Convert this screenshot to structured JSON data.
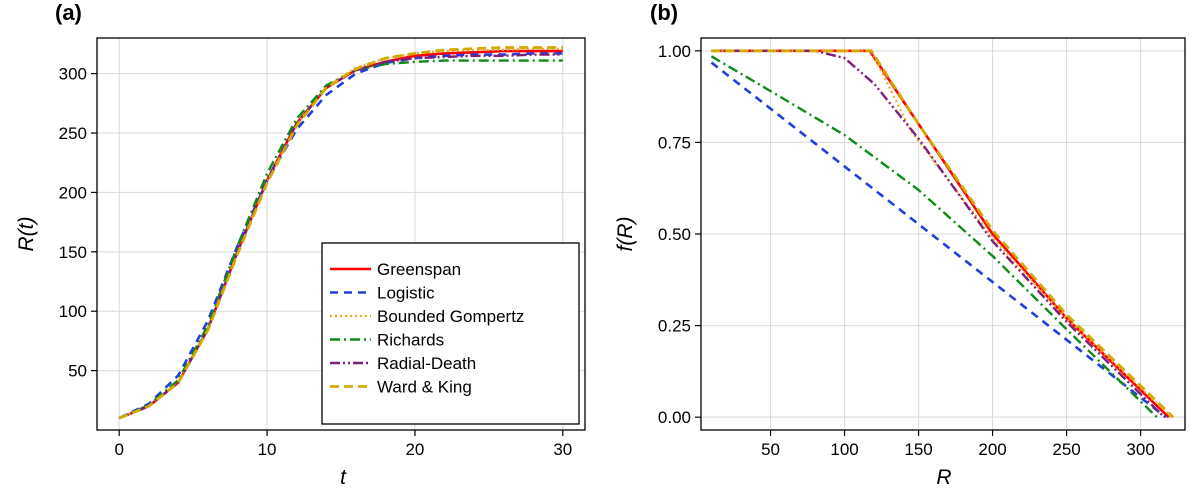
{
  "chart_data": [
    {
      "panel_label": "(a)",
      "type": "line",
      "xlabel": "t",
      "ylabel": "R(t)",
      "xlim": [
        -1.5,
        31.5
      ],
      "ylim": [
        0,
        330
      ],
      "xticks": [
        0,
        10,
        20,
        30
      ],
      "yticks": [
        50,
        100,
        150,
        200,
        250,
        300
      ],
      "grid": true,
      "legend_position": "bottom-right",
      "x": [
        0,
        2,
        4,
        6,
        8,
        10,
        12,
        14,
        16,
        18,
        20,
        22,
        24,
        26,
        28,
        30
      ],
      "series": [
        {
          "name": "Greenspan",
          "color": "#ff0000",
          "dash": "solid",
          "width": 2.6,
          "values": [
            10,
            20,
            40,
            85,
            150,
            210,
            258,
            288,
            303,
            310,
            315,
            317,
            318,
            319,
            319,
            319
          ]
        },
        {
          "name": "Logistic",
          "color": "#1f3fe0",
          "dash": "8,6",
          "width": 2.6,
          "values": [
            10,
            22,
            46,
            92,
            155,
            210,
            253,
            282,
            300,
            309,
            313,
            315,
            316,
            316,
            317,
            317
          ]
        },
        {
          "name": "Bounded Gompertz",
          "color": "#f5a623",
          "dash": "2,3",
          "width": 2.2,
          "values": [
            10,
            20,
            41,
            85,
            149,
            209,
            257,
            289,
            305,
            313,
            317,
            319,
            320,
            320,
            321,
            321
          ]
        },
        {
          "name": "Richards",
          "color": "#0e8a16",
          "dash": "10,4,2,4",
          "width": 2.4,
          "values": [
            10,
            21,
            42,
            88,
            155,
            216,
            262,
            290,
            303,
            308,
            310,
            311,
            311,
            311,
            311,
            311
          ]
        },
        {
          "name": "Radial-Death",
          "color": "#7b1f7a",
          "dash": "10,3,2,3,2,3",
          "width": 2.4,
          "values": [
            10,
            20,
            40,
            85,
            150,
            211,
            258,
            288,
            303,
            310,
            313,
            314,
            315,
            315,
            316,
            316
          ]
        },
        {
          "name": "Ward & King",
          "color": "#d4aa00",
          "dash": "9,5",
          "width": 2.8,
          "values": [
            10,
            20,
            40,
            84,
            148,
            208,
            256,
            288,
            304,
            313,
            317,
            320,
            321,
            322,
            322,
            322
          ]
        }
      ]
    },
    {
      "panel_label": "(b)",
      "type": "line",
      "xlabel": "R",
      "ylabel": "f(R)",
      "xlim": [
        3,
        330
      ],
      "ylim": [
        -0.035,
        1.035
      ],
      "xticks": [
        50,
        100,
        150,
        200,
        250,
        300
      ],
      "ytick_labels": [
        "0.00",
        "0.25",
        "0.50",
        "0.75",
        "1.00"
      ],
      "grid": true,
      "series": [
        {
          "name": "Greenspan",
          "color": "#ff0000",
          "dash": "solid",
          "width": 2.6,
          "x": [
            10,
            117,
            150,
            200,
            250,
            319
          ],
          "values": [
            1.0,
            1.0,
            0.8,
            0.5,
            0.27,
            0.0
          ]
        },
        {
          "name": "Logistic",
          "color": "#1f3fe0",
          "dash": "8,6",
          "width": 2.6,
          "x": [
            10,
            317
          ],
          "values": [
            0.968,
            0.0
          ]
        },
        {
          "name": "Bounded Gompertz",
          "color": "#f5a623",
          "dash": "2,3",
          "width": 2.2,
          "x": [
            10,
            118,
            145,
            200,
            250,
            321
          ],
          "values": [
            1.0,
            1.0,
            0.78,
            0.49,
            0.27,
            0.0
          ]
        },
        {
          "name": "Richards",
          "color": "#0e8a16",
          "dash": "10,4,2,4",
          "width": 2.4,
          "x": [
            10,
            50,
            100,
            150,
            200,
            250,
            311
          ],
          "values": [
            0.985,
            0.89,
            0.77,
            0.62,
            0.44,
            0.24,
            0.0
          ]
        },
        {
          "name": "Radial-Death",
          "color": "#7b1f7a",
          "dash": "10,3,2,3,2,3",
          "width": 2.4,
          "x": [
            10,
            80,
            100,
            120,
            150,
            200,
            250,
            316
          ],
          "values": [
            1.0,
            1.0,
            0.98,
            0.91,
            0.76,
            0.48,
            0.26,
            0.0
          ]
        },
        {
          "name": "Ward & King",
          "color": "#d4aa00",
          "dash": "9,5",
          "width": 2.8,
          "x": [
            10,
            118,
            150,
            200,
            250,
            322
          ],
          "values": [
            1.0,
            1.0,
            0.8,
            0.51,
            0.28,
            0.0
          ]
        }
      ]
    }
  ]
}
